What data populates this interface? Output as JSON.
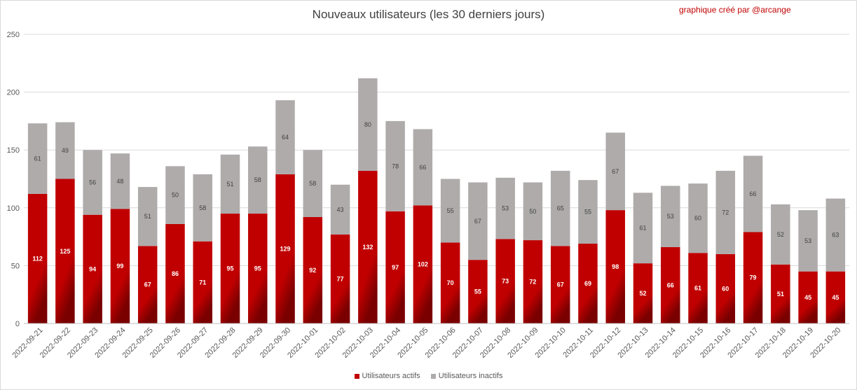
{
  "title": "Nouveaux utilisateurs  (les 30 derniers  jours)",
  "credit": "graphique créé par @arcange",
  "colors": {
    "active": "#c00000",
    "inactive": "#afabab",
    "grid": "#d9d9d9"
  },
  "legend": {
    "active_label": "Utilisateurs actifs",
    "inactive_label": "Utilisateurs inactifs"
  },
  "chart_data": {
    "type": "bar",
    "stacked": true,
    "categories": [
      "2022-09-21",
      "2022-09-22",
      "2022-09-23",
      "2022-09-24",
      "2022-09-25",
      "2022-09-26",
      "2022-09-27",
      "2022-09-28",
      "2022-09-29",
      "2022-09-30",
      "2022-10-01",
      "2022-10-02",
      "2022-10-03",
      "2022-10-04",
      "2022-10-05",
      "2022-10-06",
      "2022-10-07",
      "2022-10-08",
      "2022-10-09",
      "2022-10-10",
      "2022-10-11",
      "2022-10-12",
      "2022-10-13",
      "2022-10-14",
      "2022-10-15",
      "2022-10-16",
      "2022-10-17",
      "2022-10-18",
      "2022-10-19",
      "2022-10-20"
    ],
    "series": [
      {
        "name": "Utilisateurs actifs",
        "values": [
          112,
          125,
          94,
          99,
          67,
          86,
          71,
          95,
          95,
          129,
          92,
          77,
          132,
          97,
          102,
          70,
          55,
          73,
          72,
          67,
          69,
          98,
          52,
          66,
          61,
          60,
          79,
          51,
          45,
          45
        ]
      },
      {
        "name": "Utilisateurs inactifs",
        "values": [
          61,
          49,
          56,
          48,
          51,
          50,
          58,
          51,
          58,
          64,
          58,
          43,
          80,
          78,
          66,
          55,
          67,
          53,
          50,
          65,
          55,
          67,
          61,
          53,
          60,
          72,
          66,
          52,
          53,
          63
        ]
      }
    ],
    "ylim": [
      0,
      250
    ],
    "yticks": [
      0,
      50,
      100,
      150,
      200,
      250
    ],
    "grid": true,
    "legend_position": "bottom"
  }
}
